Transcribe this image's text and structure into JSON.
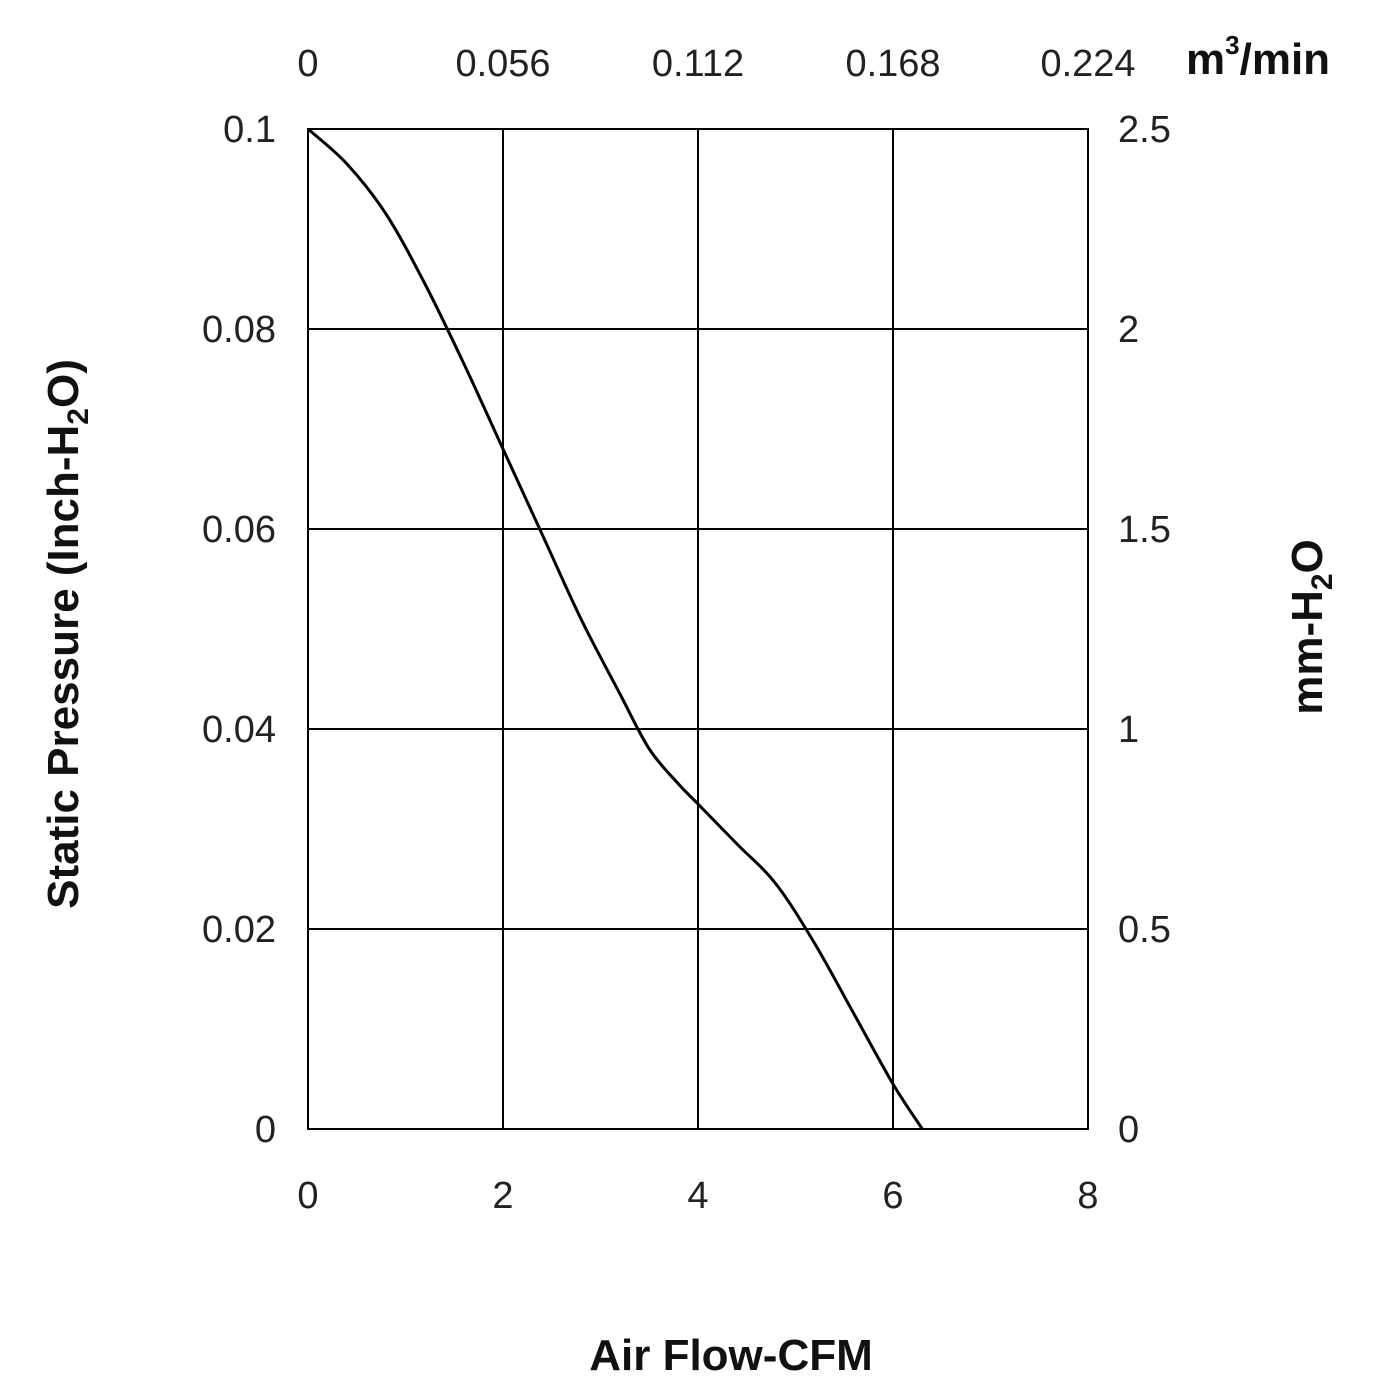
{
  "chart_data": {
    "type": "line",
    "xlabel": "Air Flow-CFM",
    "ylabel": "Static Pressure (Inch-H",
    "ylabel_sub": "2",
    "ylabel_end": "O)",
    "y2label": "mm-H",
    "y2label_sub": "2",
    "y2label_end": "O",
    "x2unit": "m",
    "x2unit_sup": "3",
    "x2unit_end": "/min",
    "xlim": [
      0,
      8
    ],
    "ylim": [
      0,
      0.1
    ],
    "x_ticks": [
      "0",
      "2",
      "4",
      "6",
      "8"
    ],
    "y_ticks": [
      "0",
      "0.02",
      "0.04",
      "0.06",
      "0.08",
      "0.1"
    ],
    "x2_ticks": [
      "0",
      "0.056",
      "0.112",
      "0.168",
      "0.224"
    ],
    "y2_ticks": [
      "0",
      "0.5",
      "1",
      "1.5",
      "2",
      "2.5"
    ],
    "grid": true,
    "series": [
      {
        "x": [
          0,
          0.4,
          0.8,
          1.2,
          1.6,
          2.0,
          2.4,
          2.8,
          3.2,
          3.5,
          3.8,
          4.0,
          4.4,
          4.8,
          5.2,
          5.6,
          6.0,
          6.3
        ],
        "y": [
          0.1,
          0.0965,
          0.0915,
          0.0845,
          0.0765,
          0.068,
          0.0595,
          0.051,
          0.0435,
          0.038,
          0.0345,
          0.0325,
          0.0285,
          0.0245,
          0.0185,
          0.0115,
          0.0045,
          0.0
        ]
      }
    ]
  }
}
